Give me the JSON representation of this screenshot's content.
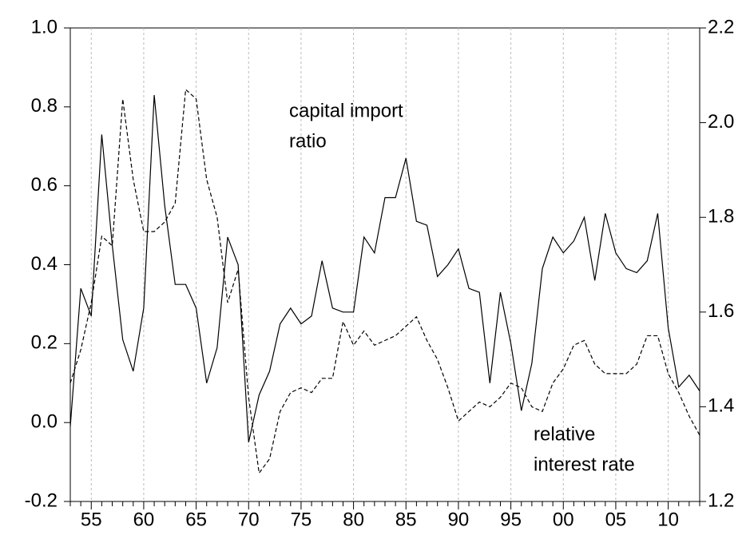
{
  "chart_data": {
    "type": "line",
    "categories": [
      null,
      null,
      "55",
      null,
      null,
      null,
      null,
      "60",
      null,
      null,
      null,
      null,
      "65",
      null,
      null,
      null,
      null,
      "70",
      null,
      null,
      null,
      null,
      "75",
      null,
      null,
      null,
      null,
      "80",
      null,
      null,
      null,
      null,
      "85",
      null,
      null,
      null,
      null,
      "90",
      null,
      null,
      null,
      null,
      "95",
      null,
      null,
      null,
      null,
      "00",
      null,
      null,
      null,
      null,
      "05",
      null,
      null,
      null,
      null,
      "10",
      null,
      null,
      null
    ],
    "series": [
      {
        "color": "#000000",
        "line_style": "solid",
        "axis": "y",
        "values": [
          -0.01,
          0.34,
          0.27,
          0.73,
          0.45,
          0.21,
          0.13,
          0.29,
          0.83,
          0.55,
          0.35,
          0.35,
          0.29,
          0.1,
          0.19,
          0.47,
          0.4,
          -0.05,
          0.07,
          0.13,
          0.25,
          0.29,
          0.25,
          0.27,
          0.41,
          0.29,
          0.28,
          0.28,
          0.47,
          0.43,
          0.57,
          0.57,
          0.67,
          0.51,
          0.5,
          0.37,
          0.4,
          0.44,
          0.34,
          0.33,
          0.1,
          0.33,
          0.2,
          0.03,
          0.15,
          0.39,
          0.47,
          0.43,
          0.46,
          0.52,
          0.36,
          0.53,
          0.43,
          0.39,
          0.38,
          0.41,
          0.53,
          0.24,
          0.09,
          0.12,
          0.08
        ]
      },
      {
        "color": "#000000",
        "line_style": "dashed",
        "axis": "y2",
        "values": [
          1.45,
          1.52,
          1.62,
          1.76,
          1.74,
          2.05,
          1.88,
          1.77,
          1.77,
          1.79,
          1.83,
          2.07,
          2.05,
          1.88,
          1.8,
          1.62,
          1.69,
          1.42,
          1.26,
          1.29,
          1.39,
          1.43,
          1.44,
          1.43,
          1.46,
          1.46,
          1.58,
          1.53,
          1.56,
          1.53,
          1.54,
          1.55,
          1.57,
          1.59,
          1.54,
          1.5,
          1.44,
          1.37,
          1.39,
          1.41,
          1.4,
          1.42,
          1.45,
          1.44,
          1.4,
          1.39,
          1.45,
          1.48,
          1.53,
          1.54,
          1.49,
          1.47,
          1.47,
          1.47,
          1.49,
          1.55,
          1.55,
          1.47,
          1.43,
          1.38,
          1.34
        ]
      }
    ],
    "ylim": [
      -0.2,
      1.0
    ],
    "yticks": [
      -0.2,
      {
        "value": 0,
        "label": "0.0"
      },
      0.2,
      0.4,
      0.6,
      0.8,
      {
        "value": 1,
        "label": "1.0"
      }
    ],
    "y2lim": [
      1.2,
      2.2
    ],
    "y2ticks": [
      1.2,
      1.4,
      1.6,
      1.8,
      {
        "value": 2,
        "label": "2.0"
      },
      2.2
    ],
    "grid": "x-dashed",
    "annotations": [
      "capital import",
      "ratio",
      "relative",
      "interest rate"
    ]
  }
}
